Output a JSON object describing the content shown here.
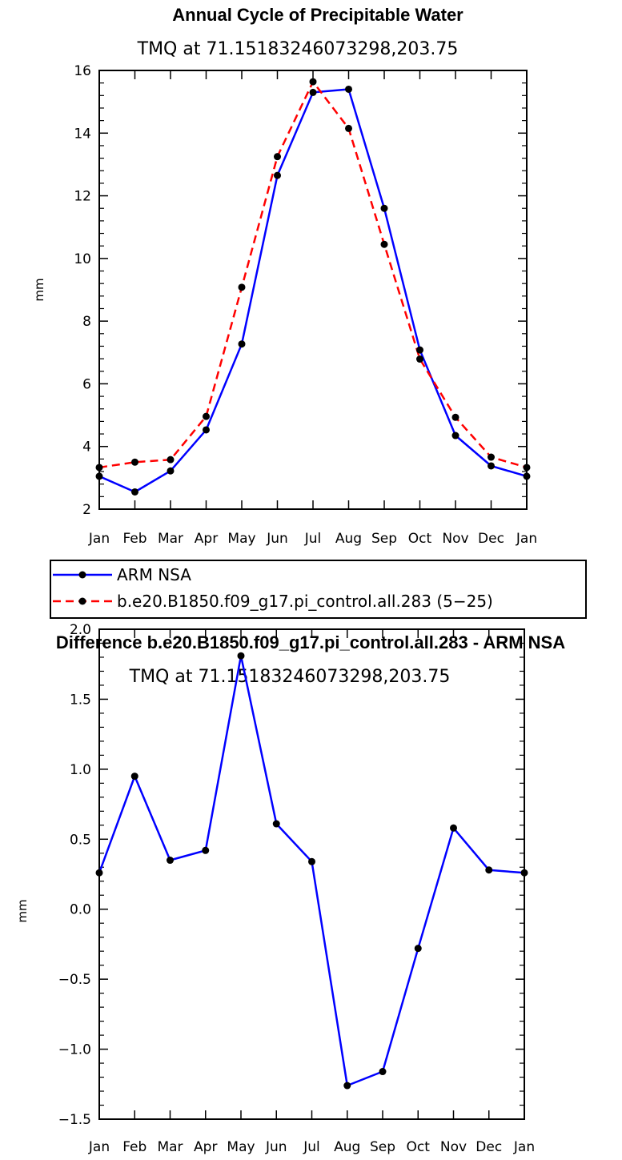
{
  "chart_data": [
    {
      "type": "line",
      "title": "Annual Cycle of Precipitable Water",
      "subtitle": "TMQ at 71.15183246073298,203.75",
      "ylabel": "mm",
      "xlabel": "",
      "ylim": [
        2,
        16
      ],
      "yticks": [
        "2",
        "4",
        "6",
        "8",
        "10",
        "12",
        "14",
        "16"
      ],
      "categories": [
        "Jan",
        "Feb",
        "Mar",
        "Apr",
        "May",
        "Jun",
        "Jul",
        "Aug",
        "Sep",
        "Oct",
        "Nov",
        "Dec",
        "Jan"
      ],
      "series": [
        {
          "name": "ARM NSA",
          "color": "#0000ff",
          "style": "solid",
          "values": [
            3.05,
            2.55,
            3.22,
            4.53,
            7.27,
            12.65,
            15.3,
            15.4,
            11.6,
            7.08,
            4.35,
            3.38,
            3.05
          ]
        },
        {
          "name": "b.e20.B1850.f09_g17.pi_control.all.283 (5-25)",
          "color": "#ff0000",
          "style": "dashed",
          "values": [
            3.33,
            3.5,
            3.58,
            4.96,
            9.08,
            13.25,
            15.64,
            14.15,
            10.45,
            6.79,
            4.93,
            3.66,
            3.33
          ]
        }
      ],
      "legend": [
        "ARM NSA",
        "b.e20.B1850.f09_g17.pi_control.all.283 (5−25)"
      ]
    },
    {
      "type": "line",
      "title": "Difference b.e20.B1850.f09_g17.pi_control.all.283 - ARM NSA",
      "subtitle": "TMQ at 71.15183246073298,203.75",
      "ylabel": "mm",
      "xlabel": "",
      "ylim": [
        -1.5,
        2.0
      ],
      "yticks": [
        "−1.5",
        "−1.0",
        "−0.5",
        "0.0",
        "0.5",
        "1.0",
        "1.5",
        "2.0"
      ],
      "categories": [
        "Jan",
        "Feb",
        "Mar",
        "Apr",
        "May",
        "Jun",
        "Jul",
        "Aug",
        "Sep",
        "Oct",
        "Nov",
        "Dec",
        "Jan"
      ],
      "series": [
        {
          "name": "Difference",
          "color": "#0000ff",
          "style": "solid",
          "values": [
            0.26,
            0.95,
            0.35,
            0.42,
            1.81,
            0.61,
            0.34,
            -1.26,
            -1.16,
            -0.28,
            0.58,
            0.28,
            0.26
          ]
        }
      ]
    }
  ]
}
